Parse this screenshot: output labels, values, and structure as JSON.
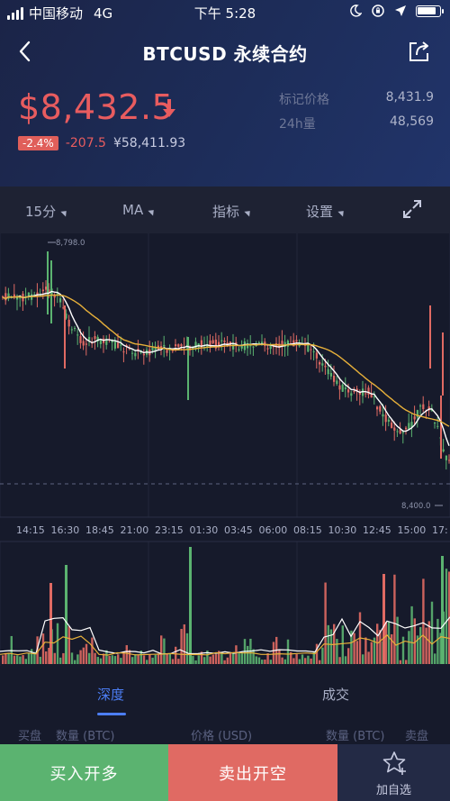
{
  "status_bar": {
    "carrier": "中国移动",
    "network": "4G",
    "time": "下午 5:28"
  },
  "nav": {
    "title": "BTCUSD 永续合约"
  },
  "ticker": {
    "price": "$8,432.5",
    "change_pct": "-2.4%",
    "change": "-207.5",
    "cny": "¥58,411.93",
    "mark_price_label": "标记价格",
    "mark_price": "8,431.9",
    "volume_label": "24h量",
    "volume": "48,569"
  },
  "toolbar": {
    "interval": "15分",
    "ma": "MA",
    "indicator": "指标",
    "settings": "设置"
  },
  "chart": {
    "high_label": "8,798.0",
    "low_label": "8,400.0",
    "time_labels": [
      "14:15",
      "16:30",
      "18:45",
      "21:00",
      "23:15",
      "01:30",
      "03:45",
      "06:00",
      "08:15",
      "10:30",
      "12:45",
      "15:00",
      "17:"
    ]
  },
  "tabs": {
    "depth": "深度",
    "trades": "成交"
  },
  "depth_header": {
    "bid": "买盘",
    "qty_left": "数量 (BTC)",
    "price": "价格 (USD)",
    "qty_right": "数量 (BTC)",
    "ask": "卖盘"
  },
  "actions": {
    "buy": "买入开多",
    "sell": "卖出开空",
    "favorite": "加自选"
  },
  "colors": {
    "up": "#5bb370",
    "down": "#e06a63",
    "accent": "#4c7ef5",
    "ma_short": "#ffffff",
    "ma_long": "#e7b03a"
  }
}
